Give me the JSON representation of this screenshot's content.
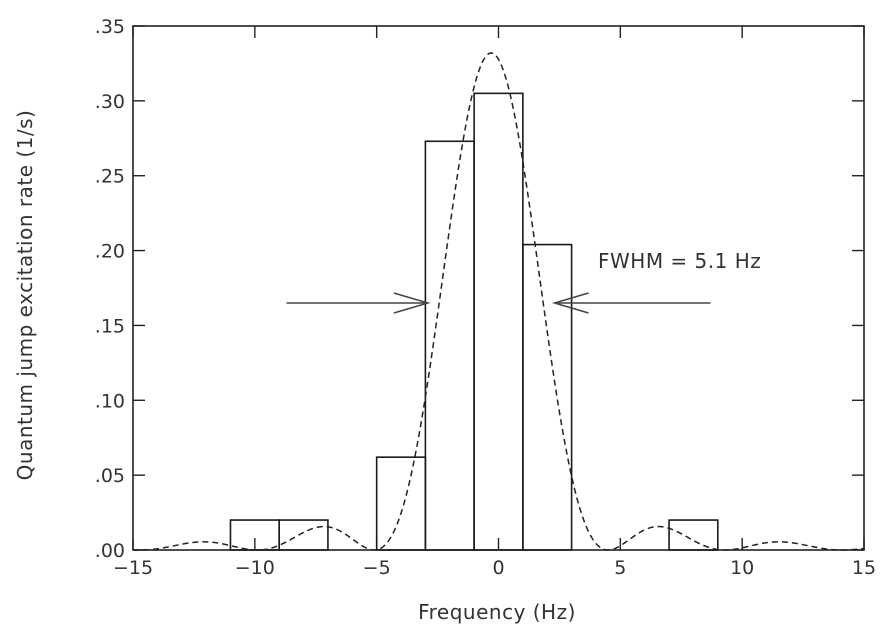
{
  "chart_data": {
    "type": "bar",
    "title": "",
    "xlabel": "Frequency (Hz)",
    "ylabel": "Quantum jump excitation rate (1/s)",
    "xlim": [
      -15,
      15
    ],
    "ylim": [
      0,
      0.35
    ],
    "xticks": [
      -15,
      -10,
      -5,
      0,
      5,
      10,
      15
    ],
    "xtick_labels": [
      "−15",
      "−10",
      "−5",
      "0",
      "5",
      "10",
      "15"
    ],
    "yticks": [
      0,
      0.05,
      0.1,
      0.15,
      0.2,
      0.25,
      0.3,
      0.35
    ],
    "ytick_labels": [
      ".00",
      ".05",
      ".10",
      ".15",
      ".20",
      ".25",
      ".30",
      ".35"
    ],
    "grid": false,
    "legend": "none",
    "bin_edges": [
      -11,
      -9,
      -7,
      -5,
      -3,
      -1,
      1,
      3,
      5,
      7,
      9
    ],
    "bin_values": [
      0.02,
      0.02,
      0.0,
      0.062,
      0.273,
      0.305,
      0.204,
      0.0,
      0.0,
      0.02
    ],
    "fit_curve": {
      "style": "dashed",
      "function": "sinc-squared",
      "peak_value": 0.332,
      "peak_x": -0.3
    },
    "annotations": {
      "fwhm_label": "FWHM = 5.1 Hz",
      "fwhm_value": 5.1,
      "arrow_height": 0.165,
      "left_arrow_x": [
        -8.7,
        -2.9
      ],
      "right_arrow_x": [
        8.7,
        2.3
      ]
    }
  }
}
